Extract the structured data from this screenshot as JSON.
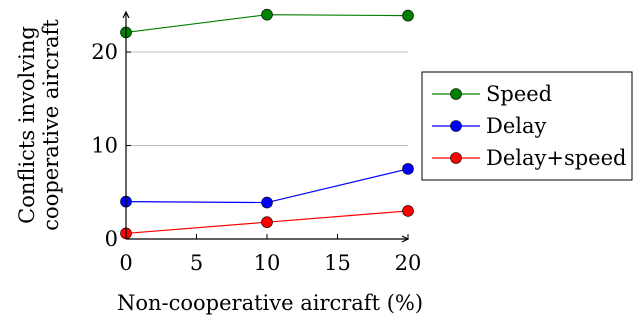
{
  "chart_data": {
    "type": "line",
    "title": "",
    "xlabel": "Non-cooperative aircraft (%)",
    "ylabel": [
      "Conflicts involving",
      "cooperative aircraft"
    ],
    "x_ticks": [
      0,
      5,
      10,
      15,
      20
    ],
    "y_ticks": [
      0,
      10,
      20
    ],
    "xlim": [
      0,
      20
    ],
    "ylim": [
      0,
      24.5
    ],
    "grid": "horizontal",
    "legend_position": "right",
    "series": [
      {
        "name": "Speed",
        "color": "#008000",
        "x": [
          0,
          10,
          20
        ],
        "y": [
          22.1,
          24.0,
          23.9
        ]
      },
      {
        "name": "Delay",
        "color": "#0000ff",
        "x": [
          0,
          10,
          20
        ],
        "y": [
          4.0,
          3.9,
          7.5
        ]
      },
      {
        "name": "Delay+speed",
        "color": "#ff0000",
        "x": [
          0,
          10,
          20
        ],
        "y": [
          0.6,
          1.8,
          3.0
        ]
      }
    ]
  }
}
